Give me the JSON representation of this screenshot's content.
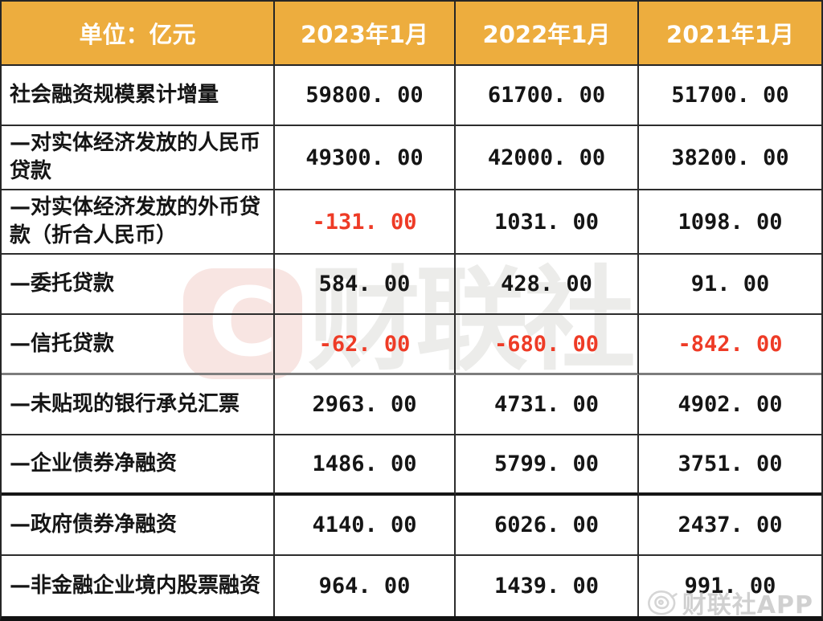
{
  "header": {
    "unit_label": "单位：亿元",
    "columns": [
      "2023年1月",
      "2022年1月",
      "2021年1月"
    ]
  },
  "rows": [
    {
      "label": "社会融资规模累计增量",
      "values": [
        "59800. 00",
        "61700. 00",
        "51700. 00"
      ]
    },
    {
      "label": "—对实体经济发放的人民币贷款",
      "values": [
        "49300. 00",
        "42000. 00",
        "38200. 00"
      ]
    },
    {
      "label": "—对实体经济发放的外币贷款（折合人民币）",
      "values": [
        "-131. 00",
        "1031. 00",
        "1098. 00"
      ]
    },
    {
      "label": "—委托贷款",
      "values": [
        "584. 00",
        "428. 00",
        "91. 00"
      ]
    },
    {
      "label": "—信托贷款",
      "values": [
        "-62. 00",
        "-680. 00",
        "-842. 00"
      ]
    },
    {
      "label": "—未贴现的银行承兑汇票",
      "values": [
        "2963. 00",
        "4731. 00",
        "4902. 00"
      ]
    },
    {
      "label": "—企业债券净融资",
      "values": [
        "1486. 00",
        "5799. 00",
        "3751. 00"
      ]
    },
    {
      "label": "—政府债券净融资",
      "values": [
        "4140. 00",
        "6026. 00",
        "2437. 00"
      ]
    },
    {
      "label": "—非金融企业境内股票融资",
      "values": [
        "964. 00",
        "1439. 00",
        "991. 00"
      ]
    }
  ],
  "watermark": {
    "center_logo_letter": "C",
    "center_text": "财联社",
    "bottom_text": "财联社APP"
  },
  "colors": {
    "header_bg": "#edad3e",
    "negative_text": "#ee3b26",
    "body_text": "#151515",
    "border": "#2d2d2d",
    "center_logo_bg": "#f8e5e2",
    "watermark_gray": "#ececea"
  }
}
